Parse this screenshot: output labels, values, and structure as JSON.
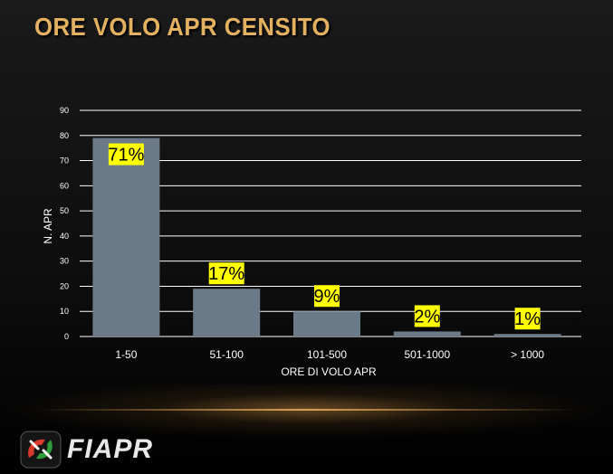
{
  "slide": {
    "title": "ORE VOLO APR CENSITO",
    "logo_text": "FIAPR"
  },
  "colors": {
    "title": "#e3b15f",
    "bar": "#6b7a89",
    "label_bg": "#ffff00",
    "text": "#ffffff"
  },
  "chart_data": {
    "type": "bar",
    "categories": [
      "1-50",
      "51-100",
      "101-500",
      "501-1000",
      "> 1000"
    ],
    "values": [
      79,
      19,
      10,
      2,
      1
    ],
    "data_labels": [
      "71%",
      "17%",
      "9%",
      "2%",
      "1%"
    ],
    "xlabel": "ORE DI VOLO APR",
    "ylabel": "N. APR",
    "ylim": [
      0,
      90
    ],
    "yticks": [
      0,
      10,
      20,
      30,
      40,
      50,
      60,
      70,
      80,
      90
    ],
    "grid": true,
    "legend": "none"
  }
}
